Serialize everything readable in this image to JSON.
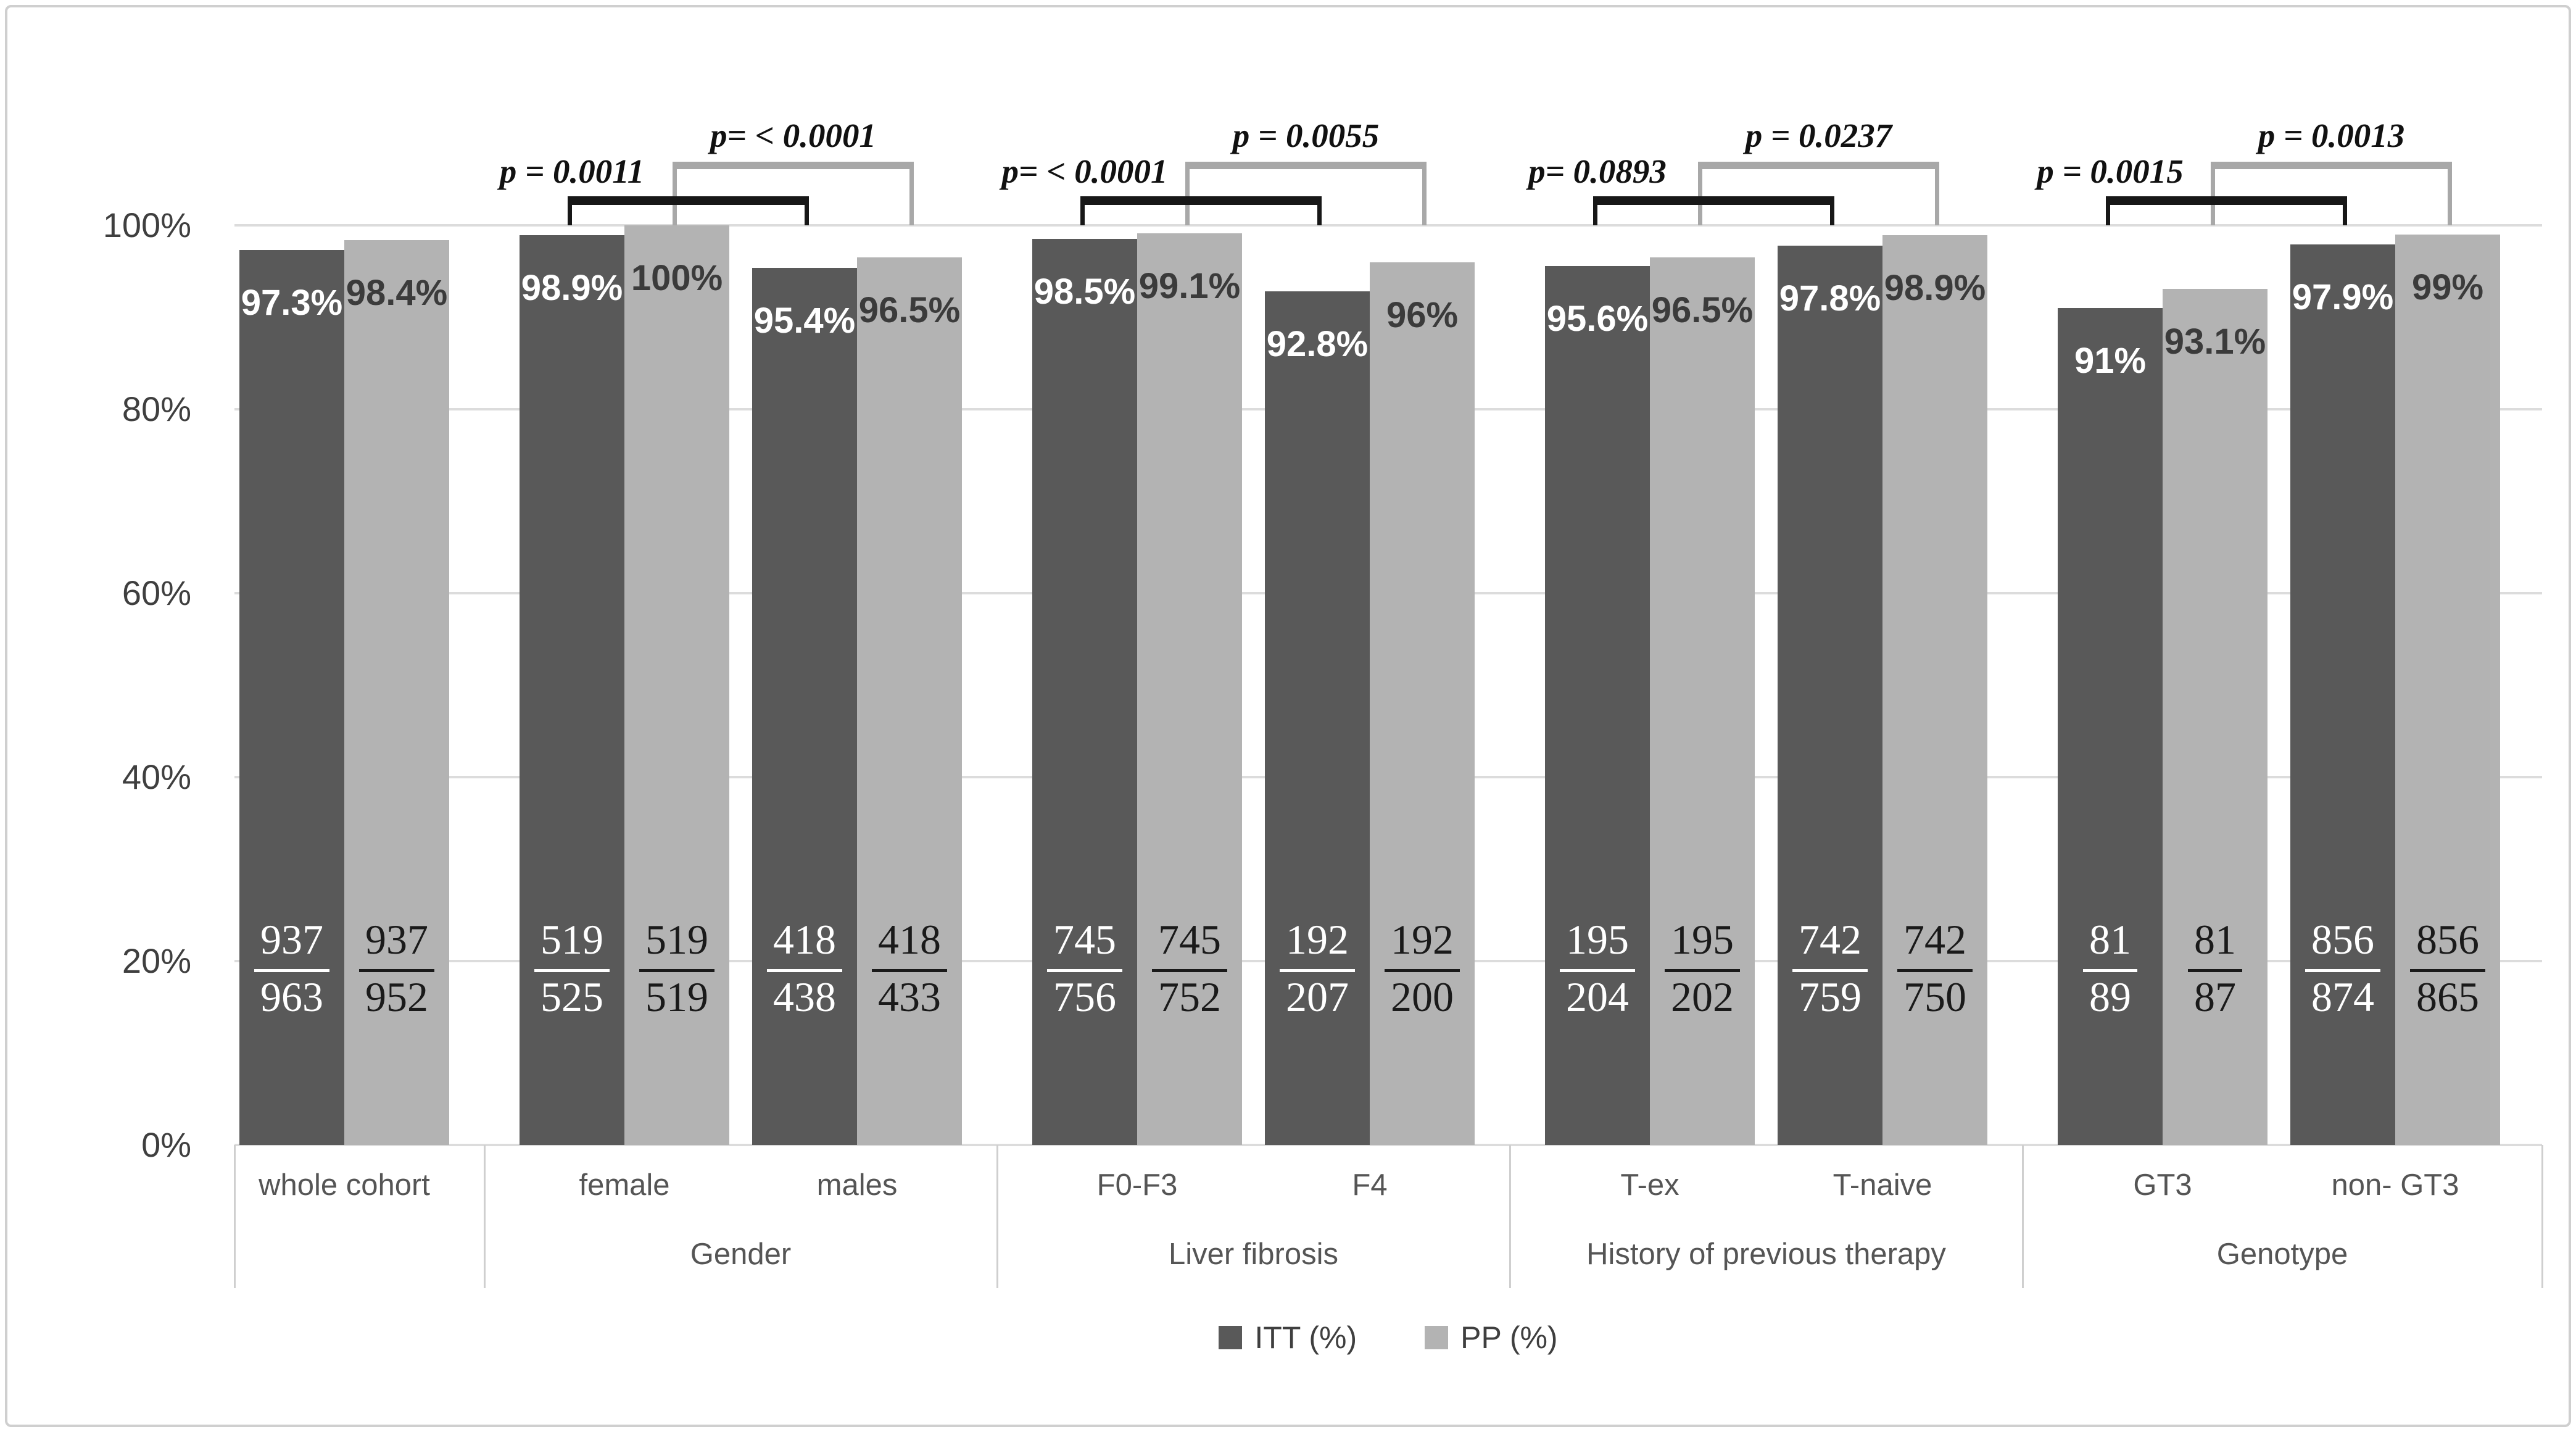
{
  "chart_data": {
    "type": "bar",
    "title": "",
    "y_axis": {
      "range": [
        0,
        100
      ],
      "gridlines": true,
      "ticks": [
        {
          "label": "100%",
          "value": 100
        },
        {
          "label": "80%",
          "value": 80
        },
        {
          "label": "60%",
          "value": 60
        },
        {
          "label": "40%",
          "value": 40
        },
        {
          "label": "20%",
          "value": 20
        },
        {
          "label": "0%",
          "value": 0
        }
      ]
    },
    "series_names": [
      "ITT (%)",
      "PP (%)"
    ],
    "groups": [
      {
        "label": "",
        "categories": [
          {
            "label": "whole cohort",
            "itt": {
              "value": 97.3,
              "pct_label": "97.3%",
              "numerator": "937",
              "denominator": "963"
            },
            "pp": {
              "value": 98.4,
              "pct_label": "98.4%",
              "numerator": "937",
              "denominator": "952"
            }
          }
        ]
      },
      {
        "label": "Gender",
        "categories": [
          {
            "label": "female",
            "itt": {
              "value": 98.9,
              "pct_label": "98.9%",
              "numerator": "519",
              "denominator": "525"
            },
            "pp": {
              "value": 100,
              "pct_label": "100%",
              "numerator": "519",
              "denominator": "519"
            }
          },
          {
            "label": "males",
            "itt": {
              "value": 95.4,
              "pct_label": "95.4%",
              "numerator": "418",
              "denominator": "438"
            },
            "pp": {
              "value": 96.5,
              "pct_label": "96.5%",
              "numerator": "418",
              "denominator": "433"
            }
          }
        ]
      },
      {
        "label": "Liver fibrosis",
        "categories": [
          {
            "label": "F0-F3",
            "itt": {
              "value": 98.5,
              "pct_label": "98.5%",
              "numerator": "745",
              "denominator": "756"
            },
            "pp": {
              "value": 99.1,
              "pct_label": "99.1%",
              "numerator": "745",
              "denominator": "752"
            }
          },
          {
            "label": "F4",
            "itt": {
              "value": 92.8,
              "pct_label": "92.8%",
              "numerator": "192",
              "denominator": "207"
            },
            "pp": {
              "value": 96,
              "pct_label": "96%",
              "numerator": "192",
              "denominator": "200"
            }
          }
        ]
      },
      {
        "label": "History of previous therapy",
        "categories": [
          {
            "label": "T-ex",
            "itt": {
              "value": 95.6,
              "pct_label": "95.6%",
              "numerator": "195",
              "denominator": "204"
            },
            "pp": {
              "value": 96.5,
              "pct_label": "96.5%",
              "numerator": "195",
              "denominator": "202"
            }
          },
          {
            "label": "T-naive",
            "itt": {
              "value": 97.8,
              "pct_label": "97.8%",
              "numerator": "742",
              "denominator": "759"
            },
            "pp": {
              "value": 98.9,
              "pct_label": "98.9%",
              "numerator": "742",
              "denominator": "750"
            }
          }
        ]
      },
      {
        "label": "Genotype",
        "categories": [
          {
            "label": "GT3",
            "itt": {
              "value": 91,
              "pct_label": "91%",
              "numerator": "81",
              "denominator": "89"
            },
            "pp": {
              "value": 93.1,
              "pct_label": "93.1%",
              "numerator": "81",
              "denominator": "87"
            }
          },
          {
            "label": "non- GT3",
            "itt": {
              "value": 97.9,
              "pct_label": "97.9%",
              "numerator": "856",
              "denominator": "874"
            },
            "pp": {
              "value": 99,
              "pct_label": "99%",
              "numerator": "856",
              "denominator": "865"
            }
          }
        ]
      }
    ],
    "p_values": [
      {
        "group": "Gender",
        "itt": "p = 0.0011",
        "pp": "p= < 0.0001"
      },
      {
        "group": "Liver fibrosis",
        "itt": "p= < 0.0001",
        "pp": "p = 0.0055"
      },
      {
        "group": "History of previous therapy",
        "itt": "p= 0.0893",
        "pp": "p = 0.0237"
      },
      {
        "group": "Genotype",
        "itt": "p = 0.0015",
        "pp": "p = 0.0013"
      }
    ],
    "legend": [
      {
        "name": "ITT (%)",
        "color": "#595959"
      },
      {
        "name": "PP  (%)",
        "color": "#b3b3b3"
      }
    ],
    "colors": {
      "itt_bar": "#595959",
      "pp_bar": "#b3b3b3",
      "gridline": "#dcdcdc",
      "itt_bracket": "#171717",
      "pp_bracket": "#a8a8a8",
      "axis_text": "#555555"
    }
  }
}
